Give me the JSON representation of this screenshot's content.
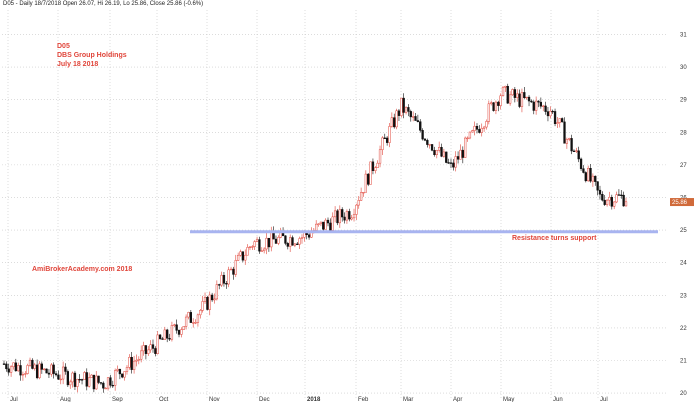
{
  "header": {
    "info": "D05 - Daily 18/7/2018 Open 26.07, Hi 26.19, Lo 25.86, Close 25.86 (-0.6%)"
  },
  "annotations": {
    "ticker": "D05",
    "company": "DBS Group Holdings",
    "date": "July 18 2018",
    "website": "AmiBrokerAcademy.com  2018",
    "support_label": "Resistance turns support"
  },
  "colors": {
    "up_candle": "#e0453a",
    "down_candle": "#111111",
    "support_line": "#a8b4f0",
    "annotation_text": "#e0453a",
    "price_tag": "#d06a3a",
    "grid": "#c8c8c8"
  },
  "chart_data": {
    "type": "candlestick",
    "title": "D05 DBS Group Holdings",
    "x_ticks": [
      "Jul",
      "Aug",
      "Sep",
      "Oct",
      "Nov",
      "Dec",
      "2018",
      "Feb",
      "Mar",
      "Apr",
      "May",
      "Jun",
      "Jul"
    ],
    "y_ticks": [
      20,
      21,
      22,
      23,
      24,
      25,
      26,
      27,
      28,
      29,
      30,
      31
    ],
    "ylim": [
      19.85,
      31.75
    ],
    "grid": "dotted",
    "last_price": "25.86",
    "support_level": 24.95,
    "monthly_path": [
      {
        "month": "Jul",
        "price": 20.9
      },
      {
        "month": "Aug",
        "price": 20.6
      },
      {
        "month": "Sep",
        "price": 20.3
      },
      {
        "month": "Oct",
        "price": 21.4
      },
      {
        "month": "Nov",
        "price": 22.6
      },
      {
        "month": "Dec",
        "price": 24.6
      },
      {
        "month": "2018",
        "price": 24.8
      },
      {
        "month": "Feb",
        "price": 25.6
      },
      {
        "month": "Mar",
        "price": 28.8
      },
      {
        "month": "Apr",
        "price": 26.9
      },
      {
        "month": "May",
        "price": 29.2
      },
      {
        "month": "Jun",
        "price": 28.7
      },
      {
        "month": "Jul",
        "price": 26.0
      }
    ]
  }
}
